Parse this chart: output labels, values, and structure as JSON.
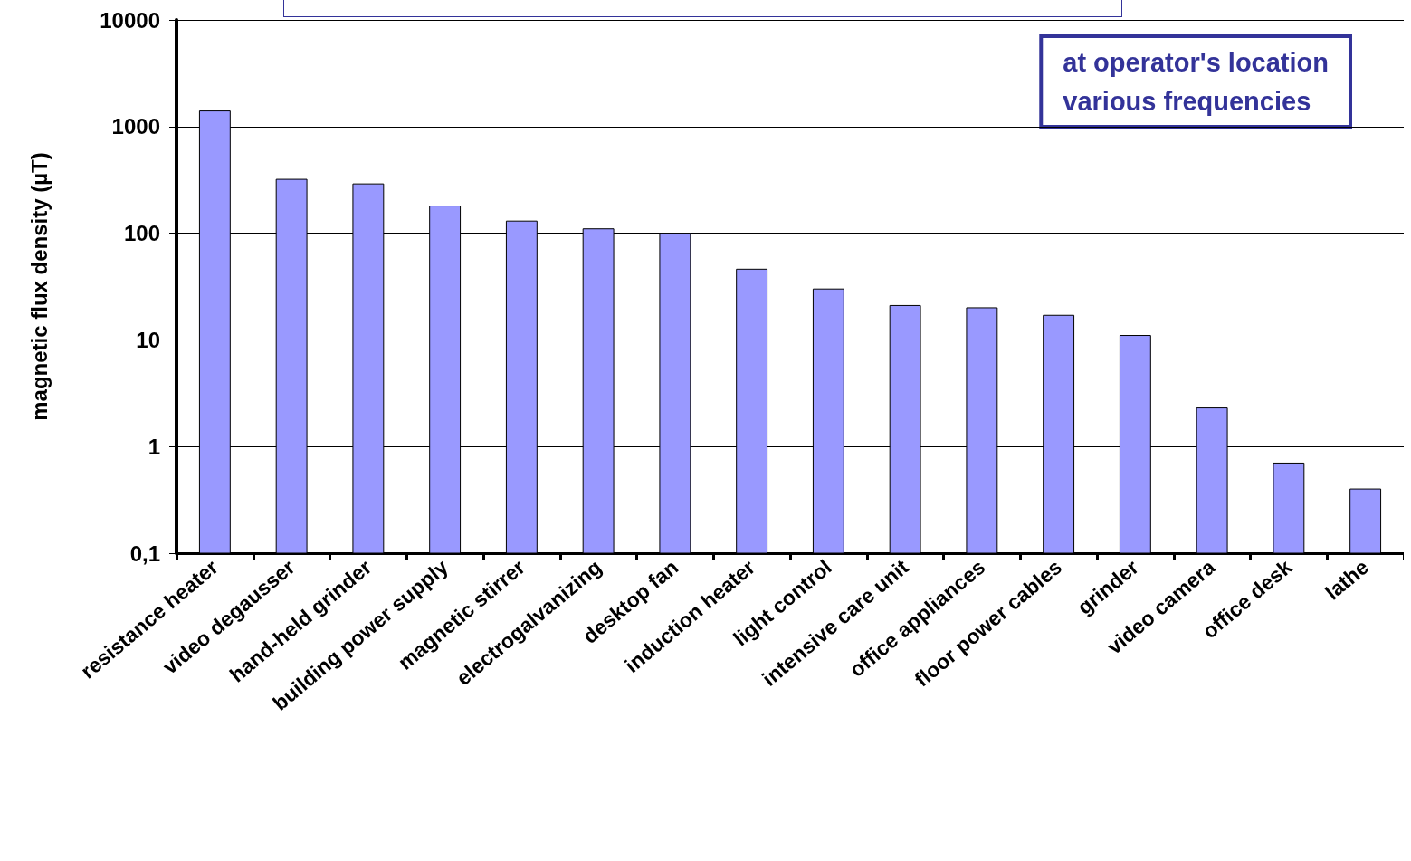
{
  "chart_data": {
    "type": "bar",
    "ylabel": "magnetic flux density (µT)",
    "categories": [
      "resistance heater",
      "video degausser",
      "hand-held grinder",
      "building power supply",
      "magnetic stirrer",
      "electrogalvanizing",
      "desktop fan",
      "induction heater",
      "light control",
      "intensive care unit",
      "office appliances",
      "floor power cables",
      "grinder",
      "video camera",
      "office desk",
      "lathe"
    ],
    "values": [
      1400,
      320,
      290,
      180,
      130,
      110,
      100,
      46,
      30,
      21,
      20,
      17,
      11,
      2.3,
      0.7,
      0.4
    ],
    "color": "#9999ff",
    "log": "y",
    "ylim": [
      0.1,
      10000
    ],
    "yticks": [
      {
        "value": 0.1,
        "label": "0,1"
      },
      1,
      10,
      100,
      1000,
      10000
    ],
    "grid": "y",
    "annotations": [
      "at operator's location\nvarious frequencies"
    ]
  }
}
